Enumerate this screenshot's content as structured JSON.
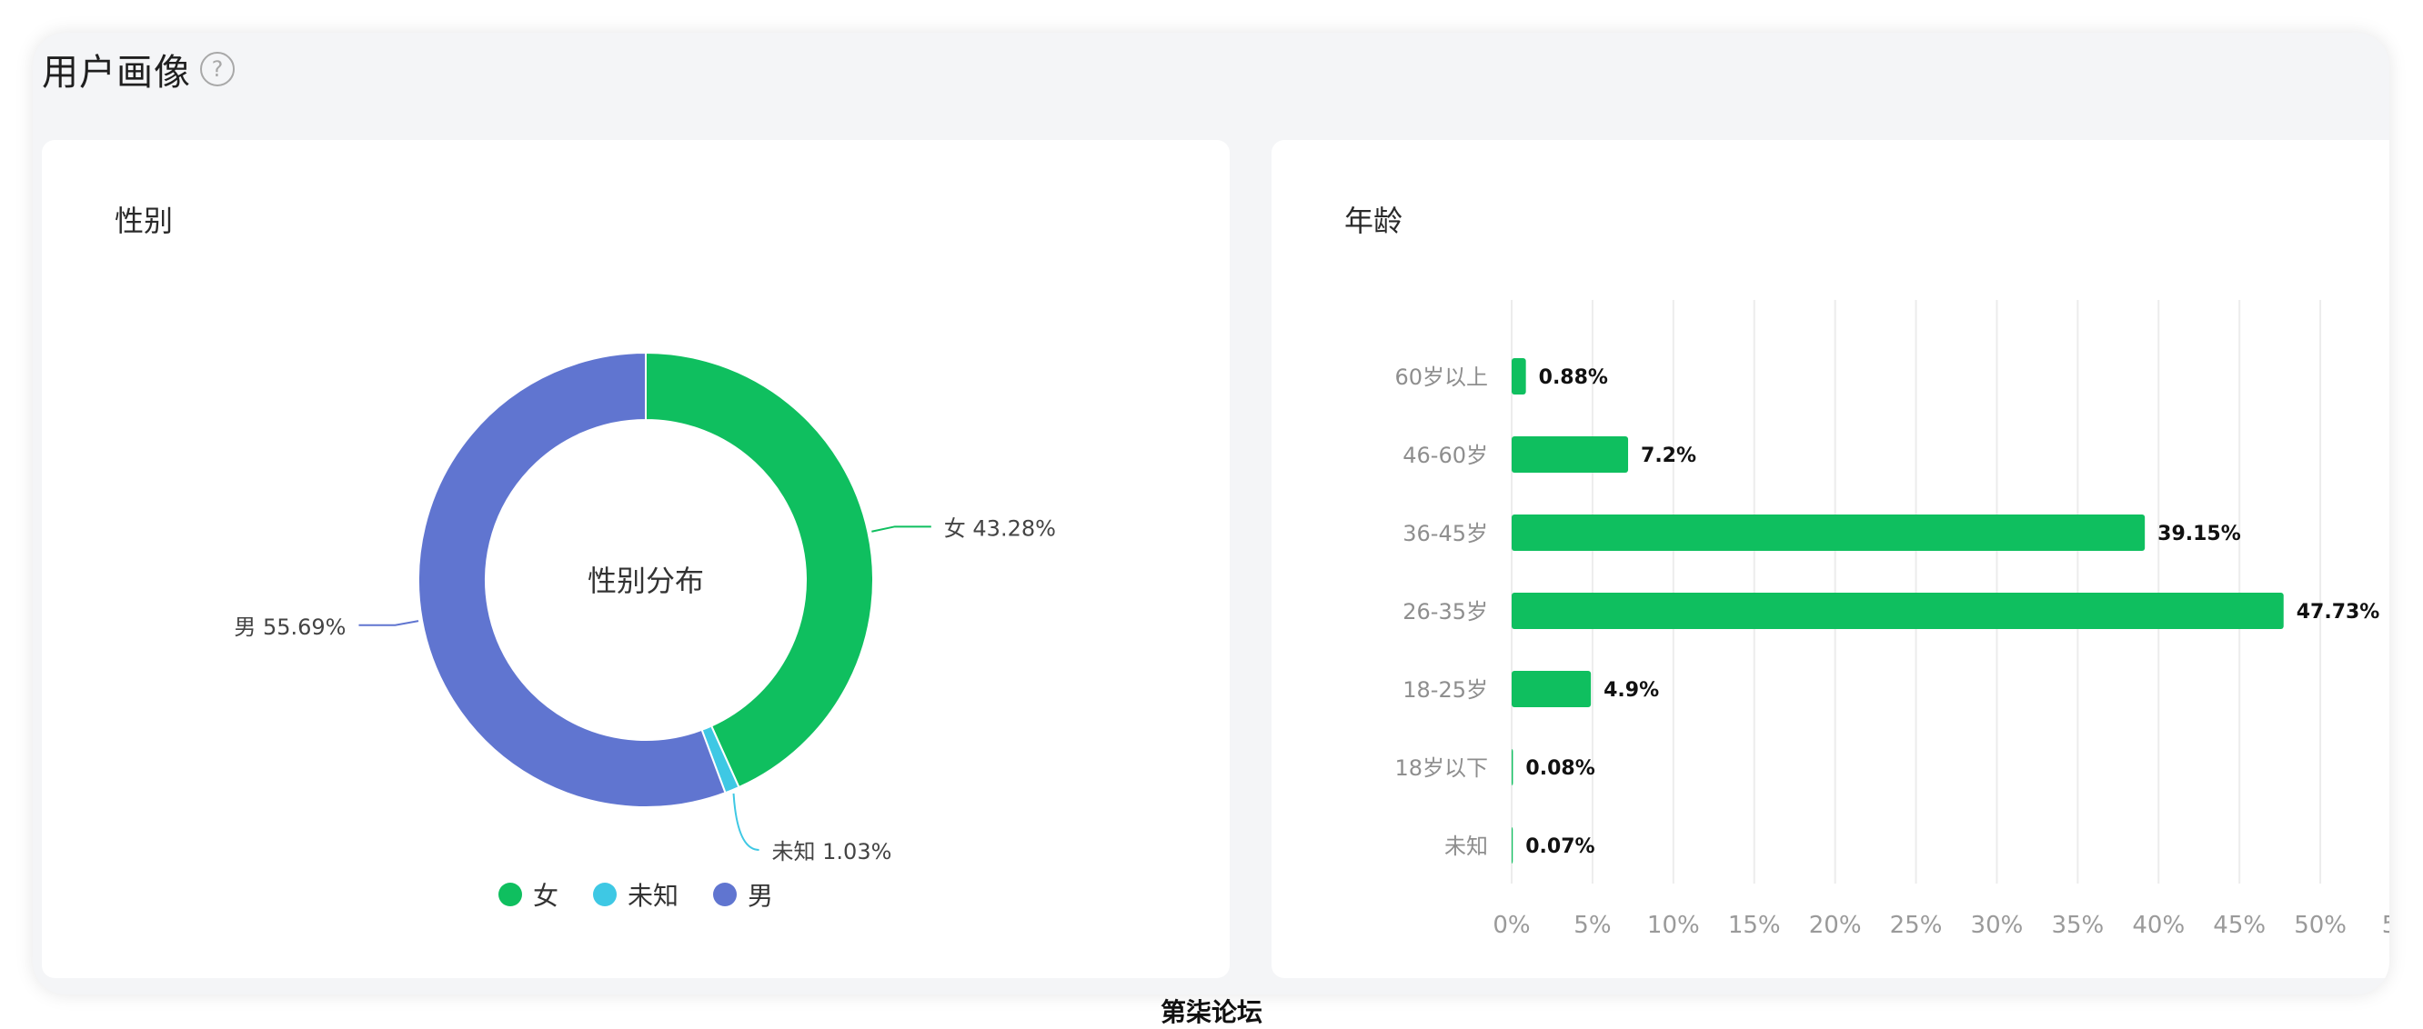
{
  "section": {
    "title": "用户画像",
    "help_icon": "question-circle-icon",
    "help_glyph": "?"
  },
  "watermark": "第柒论坛",
  "colors": {
    "female": "#0fbf5f",
    "unknown": "#3ec8e4",
    "male": "#6075d0",
    "bar": "#0fbf5f"
  },
  "gender_card": {
    "title": "性别",
    "center_label": "性别分布"
  },
  "age_card": {
    "title": "年龄"
  },
  "chart_data": [
    {
      "type": "pie",
      "title": "性别",
      "center_label": "性别分布",
      "donut": true,
      "slices": [
        {
          "name": "女",
          "value": 43.28,
          "label": "女 43.28%",
          "color": "#0fbf5f"
        },
        {
          "name": "未知",
          "value": 1.03,
          "label": "未知 1.03%",
          "color": "#3ec8e4"
        },
        {
          "name": "男",
          "value": 55.69,
          "label": "男 55.69%",
          "color": "#6075d0"
        }
      ],
      "legend": [
        "女",
        "未知",
        "男"
      ],
      "legend_position": "bottom"
    },
    {
      "type": "bar",
      "orientation": "horizontal",
      "title": "年龄",
      "categories": [
        "60岁以上",
        "46-60岁",
        "36-45岁",
        "26-35岁",
        "18-25岁",
        "18岁以下",
        "未知"
      ],
      "values": [
        0.88,
        7.2,
        39.15,
        47.73,
        4.9,
        0.08,
        0.07
      ],
      "value_labels": [
        "0.88%",
        "7.2%",
        "39.15%",
        "47.73%",
        "4.9%",
        "0.08%",
        "0.07%"
      ],
      "xlim": [
        0,
        55
      ],
      "xticks": [
        "0%",
        "5%",
        "10%",
        "15%",
        "20%",
        "25%",
        "30%",
        "35%",
        "40%",
        "45%",
        "50%",
        "5…"
      ],
      "grid": "vertical"
    }
  ]
}
